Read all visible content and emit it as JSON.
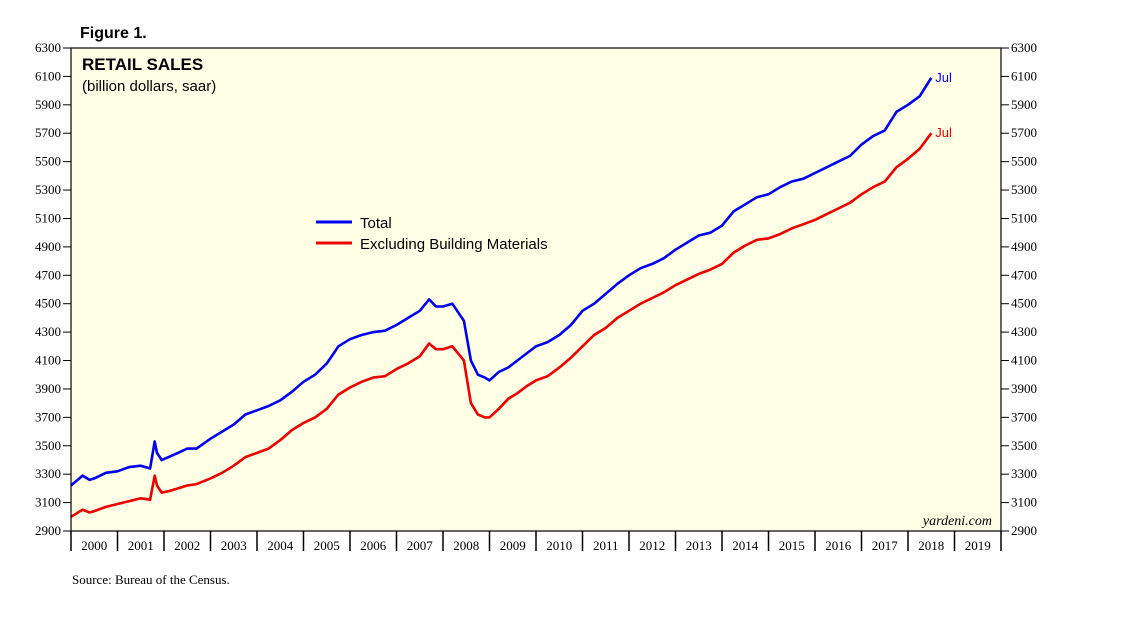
{
  "figure_label": "Figure 1.",
  "source": "Source: Bureau of the Census.",
  "watermark": "yardeni.com",
  "colors": {
    "total": "#0000ee",
    "excl": "#ee0000",
    "plot_bg": "#ffffe6",
    "axis": "#000000"
  },
  "chart_data": {
    "type": "line",
    "title": "RETAIL SALES",
    "subtitle": "(billion dollars, saar)",
    "xlabel": "",
    "ylabel": "",
    "ylim": [
      2900,
      6300
    ],
    "yticks": [
      2900,
      3100,
      3300,
      3500,
      3700,
      3900,
      4100,
      4300,
      4500,
      4700,
      4900,
      5100,
      5300,
      5500,
      5700,
      5900,
      6100,
      6300
    ],
    "x_range": [
      2000.0,
      2020.0
    ],
    "year_labels": [
      "2000",
      "2001",
      "2002",
      "2003",
      "2004",
      "2005",
      "2006",
      "2007",
      "2008",
      "2009",
      "2010",
      "2011",
      "2012",
      "2013",
      "2014",
      "2015",
      "2016",
      "2017",
      "2018",
      "2019"
    ],
    "legend": {
      "position": "center-left",
      "entries": [
        "Total",
        "Excluding Building Materials"
      ]
    },
    "end_labels": [
      "Jul",
      "Jul"
    ],
    "series": [
      {
        "name": "Total",
        "color": "#0000ee",
        "end_label": "Jul",
        "x": [
          2000.0,
          2000.25,
          2000.4,
          2000.5,
          2000.75,
          2001.0,
          2001.25,
          2001.5,
          2001.7,
          2001.8,
          2001.85,
          2001.95,
          2002.1,
          2002.3,
          2002.5,
          2002.7,
          2003.0,
          2003.25,
          2003.5,
          2003.75,
          2004.0,
          2004.25,
          2004.5,
          2004.75,
          2005.0,
          2005.25,
          2005.5,
          2005.65,
          2005.75,
          2006.0,
          2006.25,
          2006.5,
          2006.75,
          2007.0,
          2007.25,
          2007.5,
          2007.7,
          2007.85,
          2008.0,
          2008.2,
          2008.45,
          2008.6,
          2008.75,
          2008.9,
          2009.0,
          2009.2,
          2009.4,
          2009.6,
          2009.8,
          2010.0,
          2010.25,
          2010.5,
          2010.75,
          2011.0,
          2011.25,
          2011.5,
          2011.75,
          2012.0,
          2012.25,
          2012.5,
          2012.75,
          2013.0,
          2013.25,
          2013.5,
          2013.75,
          2014.0,
          2014.25,
          2014.5,
          2014.75,
          2015.0,
          2015.25,
          2015.5,
          2015.75,
          2016.0,
          2016.25,
          2016.5,
          2016.75,
          2017.0,
          2017.25,
          2017.5,
          2017.75,
          2018.0,
          2018.25,
          2018.5
        ],
        "values": [
          3220,
          3290,
          3260,
          3270,
          3310,
          3320,
          3350,
          3360,
          3340,
          3530,
          3450,
          3400,
          3420,
          3450,
          3480,
          3480,
          3550,
          3600,
          3650,
          3720,
          3750,
          3780,
          3820,
          3880,
          3950,
          4000,
          4080,
          4150,
          4200,
          4250,
          4280,
          4300,
          4310,
          4350,
          4400,
          4450,
          4530,
          4480,
          4480,
          4500,
          4380,
          4100,
          4000,
          3980,
          3960,
          4020,
          4050,
          4100,
          4150,
          4200,
          4230,
          4280,
          4350,
          4450,
          4500,
          4570,
          4640,
          4700,
          4750,
          4780,
          4820,
          4880,
          4930,
          4980,
          5000,
          5050,
          5150,
          5200,
          5250,
          5270,
          5320,
          5360,
          5380,
          5420,
          5460,
          5500,
          5540,
          5620,
          5680,
          5720,
          5850,
          5900,
          5960,
          6090
        ]
      },
      {
        "name": "Excluding Building Materials",
        "color": "#ee0000",
        "end_label": "Jul",
        "x": [
          2000.0,
          2000.25,
          2000.4,
          2000.5,
          2000.75,
          2001.0,
          2001.25,
          2001.5,
          2001.7,
          2001.8,
          2001.85,
          2001.95,
          2002.1,
          2002.3,
          2002.5,
          2002.7,
          2003.0,
          2003.25,
          2003.5,
          2003.75,
          2004.0,
          2004.25,
          2004.5,
          2004.75,
          2005.0,
          2005.25,
          2005.5,
          2005.65,
          2005.75,
          2006.0,
          2006.25,
          2006.5,
          2006.75,
          2007.0,
          2007.25,
          2007.5,
          2007.7,
          2007.85,
          2008.0,
          2008.2,
          2008.45,
          2008.6,
          2008.75,
          2008.9,
          2009.0,
          2009.2,
          2009.4,
          2009.6,
          2009.8,
          2010.0,
          2010.25,
          2010.5,
          2010.75,
          2011.0,
          2011.25,
          2011.5,
          2011.75,
          2012.0,
          2012.25,
          2012.5,
          2012.75,
          2013.0,
          2013.25,
          2013.5,
          2013.75,
          2014.0,
          2014.25,
          2014.5,
          2014.75,
          2015.0,
          2015.25,
          2015.5,
          2015.75,
          2016.0,
          2016.25,
          2016.5,
          2016.75,
          2017.0,
          2017.25,
          2017.5,
          2017.75,
          2018.0,
          2018.25,
          2018.5
        ],
        "values": [
          3000,
          3050,
          3030,
          3040,
          3070,
          3090,
          3110,
          3130,
          3120,
          3290,
          3220,
          3170,
          3180,
          3200,
          3220,
          3230,
          3270,
          3310,
          3360,
          3420,
          3450,
          3480,
          3540,
          3610,
          3660,
          3700,
          3760,
          3820,
          3860,
          3910,
          3950,
          3980,
          3990,
          4040,
          4080,
          4130,
          4220,
          4180,
          4180,
          4200,
          4100,
          3800,
          3720,
          3700,
          3700,
          3760,
          3830,
          3870,
          3920,
          3960,
          3990,
          4050,
          4120,
          4200,
          4280,
          4330,
          4400,
          4450,
          4500,
          4540,
          4580,
          4630,
          4670,
          4710,
          4740,
          4780,
          4860,
          4910,
          4950,
          4960,
          4990,
          5030,
          5060,
          5090,
          5130,
          5170,
          5210,
          5270,
          5320,
          5360,
          5460,
          5520,
          5590,
          5700
        ]
      }
    ]
  }
}
